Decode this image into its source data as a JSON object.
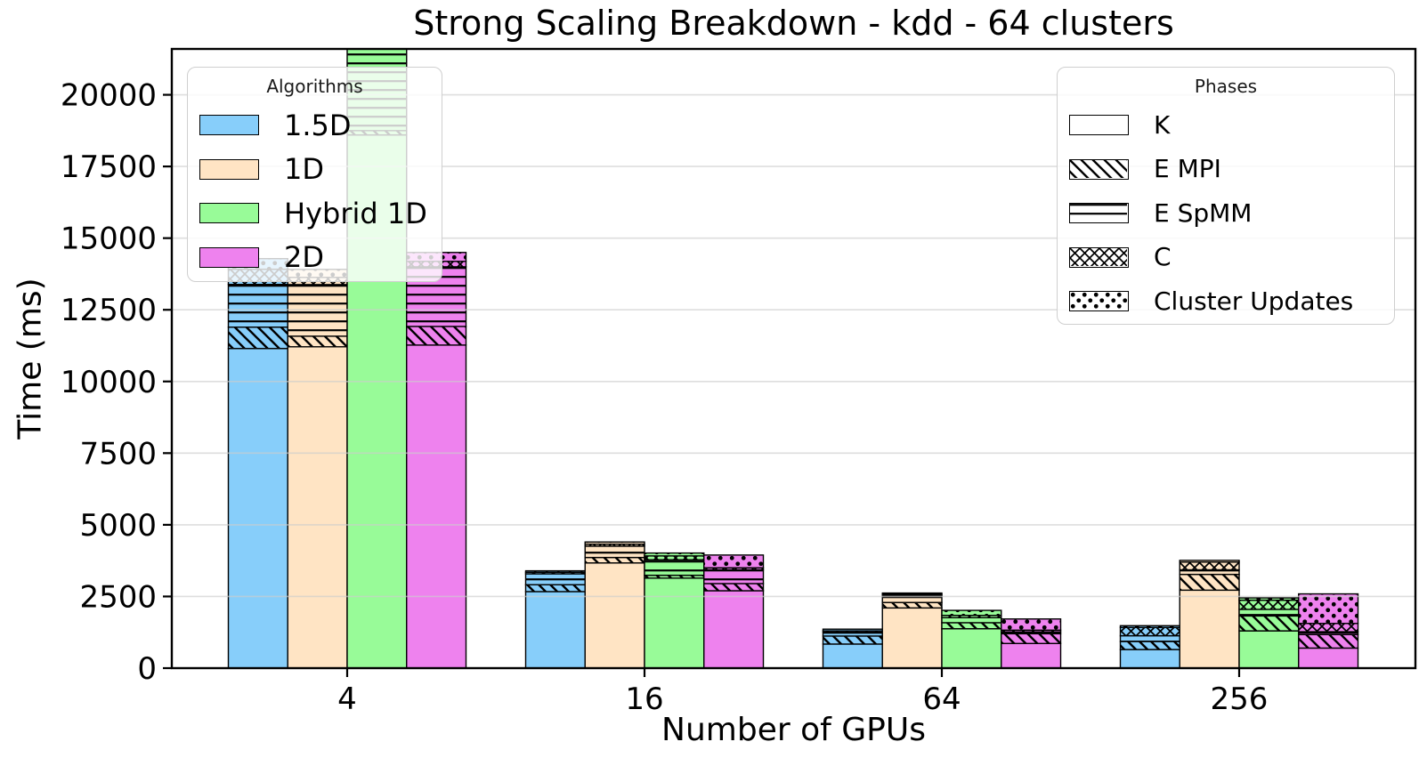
{
  "chart_data": {
    "type": "bar",
    "variant": "grouped-stacked",
    "title": "Strong Scaling Breakdown - kdd - 64 clusters",
    "xlabel": "Number of GPUs",
    "ylabel": "Time (ms)",
    "categories": [
      "4",
      "16",
      "64",
      "256"
    ],
    "y_ticks": [
      0,
      2500,
      5000,
      7500,
      10000,
      12500,
      15000,
      17500,
      20000
    ],
    "ylim": [
      0,
      21600
    ],
    "grid": "horizontal-gridlines-on",
    "phases": [
      "K",
      "E MPI",
      "E SpMM",
      "C",
      "Cluster Updates"
    ],
    "units": "ms",
    "note": "values estimated from axis; Hybrid 1D bar at 4 GPUs exceeds the y-axis range and is clipped at the top",
    "series": [
      {
        "name": "1.5D",
        "color": "#87CEFA",
        "segments_ms": [
          [
            11150,
            745,
            1490,
            530,
            370
          ],
          [
            2670,
            240,
            380,
            55,
            50
          ],
          [
            840,
            280,
            130,
            50,
            60
          ],
          [
            650,
            280,
            200,
            290,
            60
          ]
        ]
      },
      {
        "name": "1D",
        "color": "#FFE4C4",
        "segments_ms": [
          [
            11210,
            370,
            1800,
            250,
            280
          ],
          [
            3670,
            190,
            395,
            70,
            75
          ],
          [
            2100,
            190,
            250,
            40,
            40
          ],
          [
            2720,
            550,
            160,
            270,
            60
          ]
        ]
      },
      {
        "name": "Hybrid 1D",
        "color": "#98FB98",
        "segments_ms": [
          [
            18600,
            150,
            3300,
            150,
            150
          ],
          [
            3140,
            100,
            540,
            135,
            100
          ],
          [
            1375,
            210,
            175,
            80,
            175
          ],
          [
            1300,
            520,
            230,
            320,
            80
          ]
        ]
      },
      {
        "name": "2D",
        "color": "#EE82EE",
        "segments_ms": [
          [
            11270,
            650,
            2080,
            190,
            310
          ],
          [
            2700,
            250,
            480,
            70,
            445
          ],
          [
            860,
            340,
            65,
            60,
            390
          ],
          [
            700,
            470,
            100,
            290,
            1030
          ]
        ]
      }
    ]
  },
  "legends": {
    "algorithms": {
      "title": "Algorithms",
      "items": [
        {
          "label": "1.5D",
          "color": "#87CEFA"
        },
        {
          "label": "1D",
          "color": "#FFE4C4"
        },
        {
          "label": "Hybrid 1D",
          "color": "#98FB98"
        },
        {
          "label": "2D",
          "color": "#EE82EE"
        }
      ]
    },
    "phases": {
      "title": "Phases",
      "items": [
        {
          "label": "K",
          "hatch": "none"
        },
        {
          "label": "E MPI",
          "hatch": "diag"
        },
        {
          "label": "E SpMM",
          "hatch": "hlines"
        },
        {
          "label": "C",
          "hatch": "cross"
        },
        {
          "label": "Cluster Updates",
          "hatch": "dots"
        }
      ]
    }
  },
  "style": {
    "grid_color": "#cccccc",
    "edge_color": "#000000",
    "background": "#ffffff"
  }
}
